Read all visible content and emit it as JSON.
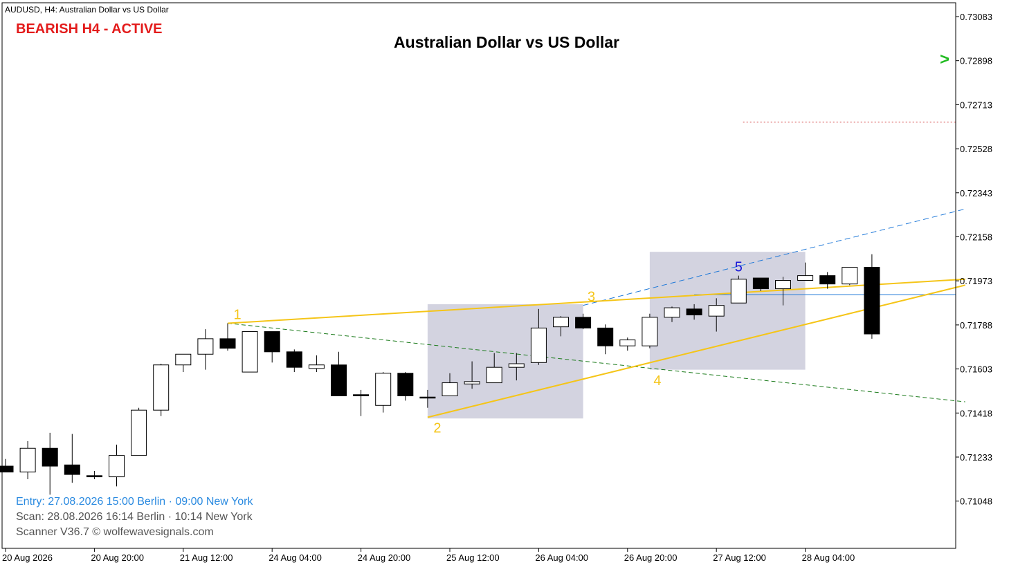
{
  "window": {
    "header": "AUDUSD, H4:  Australian Dollar vs US Dollar"
  },
  "status": {
    "label": "BEARISH H4 - ACTIVE",
    "color": "#e31b1b"
  },
  "footer": {
    "entry": "Entry: 27.08.2026  15:00 Berlin · 09:00 New York",
    "scan": "Scan:  28.08.2026  16:14 Berlin · 10:14 New York",
    "version": "Scanner V36.7  © wolfewavesignals.com"
  },
  "colors": {
    "wave_line": "#f5c518",
    "wave_label": "#f5c518",
    "point5_label": "#1414d8",
    "target_dash": "#1e78d8",
    "lower_dash": "#1a7a1a",
    "level_line": "#1e78d8",
    "red_dotted": "#cc2222",
    "zone_fill": "#d3d3e0",
    "arrow": "#22bb22",
    "entry_text": "#2a8ae0",
    "info_text": "#555555"
  },
  "icons": {
    "arrow": "chevron-right-icon"
  },
  "chart_data": {
    "type": "candlestick",
    "title": "Australian Dollar vs US Dollar",
    "symbol": "AUDUSD",
    "timeframe": "H4",
    "ylim": [
      0.709,
      0.732
    ],
    "y_ticks": [
      "0.73083",
      "0.72898",
      "0.72713",
      "0.72528",
      "0.72343",
      "0.72158",
      "0.71973",
      "0.71788",
      "0.71603",
      "0.71418",
      "0.71233",
      "0.71048"
    ],
    "x_ticks": [
      {
        "index": 0,
        "label": "20 Aug 2026"
      },
      {
        "index": 4,
        "label": "20 Aug 20:00"
      },
      {
        "index": 8,
        "label": "21 Aug 12:00"
      },
      {
        "index": 12,
        "label": "24 Aug 04:00"
      },
      {
        "index": 16,
        "label": "24 Aug 20:00"
      },
      {
        "index": 20,
        "label": "25 Aug 12:00"
      },
      {
        "index": 24,
        "label": "26 Aug 04:00"
      },
      {
        "index": 28,
        "label": "26 Aug 20:00"
      },
      {
        "index": 32,
        "label": "27 Aug 12:00"
      },
      {
        "index": 36,
        "label": "28 Aug 04:00"
      }
    ],
    "candles": [
      {
        "o": 0.71195,
        "h": 0.71225,
        "l": 0.7117,
        "c": 0.7117
      },
      {
        "o": 0.7117,
        "h": 0.713,
        "l": 0.7114,
        "c": 0.7127
      },
      {
        "o": 0.7127,
        "h": 0.71335,
        "l": 0.71075,
        "c": 0.71195
      },
      {
        "o": 0.712,
        "h": 0.7133,
        "l": 0.71125,
        "c": 0.7116
      },
      {
        "o": 0.71155,
        "h": 0.71175,
        "l": 0.7114,
        "c": 0.7115
      },
      {
        "o": 0.7115,
        "h": 0.71285,
        "l": 0.7111,
        "c": 0.7124
      },
      {
        "o": 0.7124,
        "h": 0.7144,
        "l": 0.7124,
        "c": 0.7143
      },
      {
        "o": 0.7143,
        "h": 0.71625,
        "l": 0.71405,
        "c": 0.7162
      },
      {
        "o": 0.7162,
        "h": 0.71665,
        "l": 0.7159,
        "c": 0.71665
      },
      {
        "o": 0.71665,
        "h": 0.7177,
        "l": 0.716,
        "c": 0.7173
      },
      {
        "o": 0.7173,
        "h": 0.71795,
        "l": 0.7168,
        "c": 0.7169
      },
      {
        "o": 0.7159,
        "h": 0.7176,
        "l": 0.7159,
        "c": 0.7176
      },
      {
        "o": 0.7176,
        "h": 0.7176,
        "l": 0.7163,
        "c": 0.71675
      },
      {
        "o": 0.71675,
        "h": 0.71685,
        "l": 0.7159,
        "c": 0.7161
      },
      {
        "o": 0.71605,
        "h": 0.7166,
        "l": 0.7159,
        "c": 0.7162
      },
      {
        "o": 0.7162,
        "h": 0.71675,
        "l": 0.7149,
        "c": 0.7149
      },
      {
        "o": 0.71495,
        "h": 0.71515,
        "l": 0.71405,
        "c": 0.7149
      },
      {
        "o": 0.7145,
        "h": 0.7159,
        "l": 0.7142,
        "c": 0.71585
      },
      {
        "o": 0.71585,
        "h": 0.7159,
        "l": 0.7147,
        "c": 0.7149
      },
      {
        "o": 0.71485,
        "h": 0.71515,
        "l": 0.7144,
        "c": 0.71485
      },
      {
        "o": 0.7149,
        "h": 0.71585,
        "l": 0.7149,
        "c": 0.71545
      },
      {
        "o": 0.7154,
        "h": 0.71635,
        "l": 0.7152,
        "c": 0.7155
      },
      {
        "o": 0.71545,
        "h": 0.7167,
        "l": 0.71545,
        "c": 0.7161
      },
      {
        "o": 0.7161,
        "h": 0.7167,
        "l": 0.71555,
        "c": 0.71625
      },
      {
        "o": 0.7163,
        "h": 0.71855,
        "l": 0.7162,
        "c": 0.71775
      },
      {
        "o": 0.7178,
        "h": 0.71825,
        "l": 0.7174,
        "c": 0.7182
      },
      {
        "o": 0.7182,
        "h": 0.71835,
        "l": 0.7177,
        "c": 0.71775
      },
      {
        "o": 0.71775,
        "h": 0.7179,
        "l": 0.71665,
        "c": 0.717
      },
      {
        "o": 0.717,
        "h": 0.71735,
        "l": 0.7168,
        "c": 0.71725
      },
      {
        "o": 0.717,
        "h": 0.71835,
        "l": 0.7169,
        "c": 0.7182
      },
      {
        "o": 0.7182,
        "h": 0.71865,
        "l": 0.718,
        "c": 0.7186
      },
      {
        "o": 0.71855,
        "h": 0.71875,
        "l": 0.7181,
        "c": 0.7183
      },
      {
        "o": 0.71825,
        "h": 0.719,
        "l": 0.7176,
        "c": 0.7187
      },
      {
        "o": 0.7188,
        "h": 0.71995,
        "l": 0.7188,
        "c": 0.7198
      },
      {
        "o": 0.71985,
        "h": 0.71985,
        "l": 0.7193,
        "c": 0.7194
      },
      {
        "o": 0.7194,
        "h": 0.7199,
        "l": 0.7187,
        "c": 0.71975
      },
      {
        "o": 0.71975,
        "h": 0.7205,
        "l": 0.71975,
        "c": 0.71995
      },
      {
        "o": 0.71995,
        "h": 0.7201,
        "l": 0.7194,
        "c": 0.7196
      },
      {
        "o": 0.7196,
        "h": 0.7203,
        "l": 0.71955,
        "c": 0.7203
      },
      {
        "o": 0.7203,
        "h": 0.72085,
        "l": 0.7173,
        "c": 0.7175
      }
    ],
    "wolfe_points": [
      {
        "label": "1",
        "index": 10,
        "price": 0.71795
      },
      {
        "label": "2",
        "index": 19,
        "price": 0.714
      },
      {
        "label": "3",
        "index": 26,
        "price": 0.7187
      },
      {
        "label": "4",
        "index": 29,
        "price": 0.71605
      },
      {
        "label": "5",
        "index": 33,
        "price": 0.7199
      }
    ],
    "lines": {
      "line_1_3": {
        "from": {
          "index": 10,
          "price": 0.71795
        },
        "to": {
          "index": 43.2,
          "price": 0.7198
        }
      },
      "line_2_4": {
        "from": {
          "index": 19,
          "price": 0.714
        },
        "to": {
          "index": 43.2,
          "price": 0.71955
        }
      },
      "target_1_4": {
        "from": {
          "index": 10,
          "price": 0.71795
        },
        "to": {
          "index": 43.2,
          "price": 0.71465
        }
      },
      "target_dashed": {
        "from": {
          "index": 26,
          "price": 0.7187
        },
        "to": {
          "index": 43.2,
          "price": 0.72275
        }
      },
      "level_price": 0.71915,
      "level_from_index": 31,
      "red_dotted_price": 0.7264,
      "red_dotted_from_index": 33.2
    },
    "zones": [
      {
        "from_index": 19,
        "to_index": 26,
        "top": 0.71875,
        "bottom": 0.71395
      },
      {
        "from_index": 29,
        "to_index": 36,
        "top": 0.72095,
        "bottom": 0.716
      }
    ],
    "arrow_price": 0.72905
  }
}
